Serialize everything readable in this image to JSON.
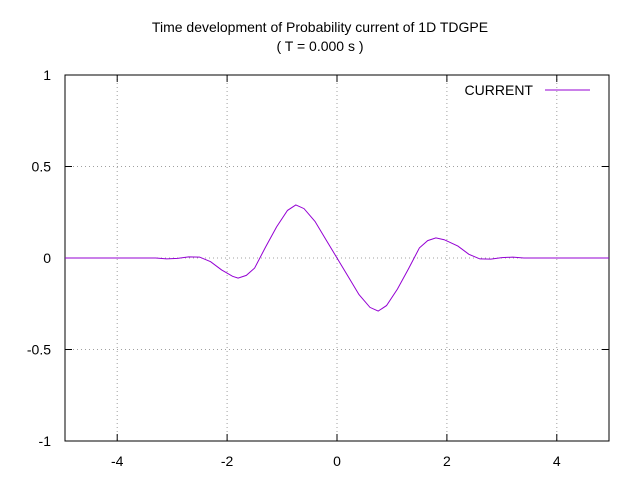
{
  "chart_data": {
    "type": "line",
    "title": "Time development of Probability current of 1D TDGPE",
    "subtitle": "( T = 0.000 s )",
    "xlabel": "",
    "ylabel": "",
    "xlim": [
      -4.95,
      4.95
    ],
    "ylim": [
      -1,
      1
    ],
    "xticks": [
      -4,
      -2,
      0,
      2,
      4
    ],
    "xtick_labels": [
      "-4",
      "-2",
      "0",
      "2",
      "4"
    ],
    "yticks": [
      1,
      0.5,
      0,
      -0.5,
      -1
    ],
    "ytick_labels": [
      "1",
      "0.5",
      "0",
      "-0.5",
      "-1"
    ],
    "grid": true,
    "legend": "top-right",
    "series": [
      {
        "name": "CURRENT",
        "color": "#9400d3",
        "x": [
          -4.95,
          -3.3,
          -3.1,
          -2.9,
          -2.7,
          -2.5,
          -2.3,
          -2.1,
          -1.9,
          -1.8,
          -1.65,
          -1.5,
          -1.3,
          -1.1,
          -0.9,
          -0.75,
          -0.6,
          -0.4,
          -0.2,
          0.0,
          0.2,
          0.4,
          0.6,
          0.75,
          0.9,
          1.1,
          1.3,
          1.5,
          1.65,
          1.8,
          1.95,
          2.2,
          2.4,
          2.6,
          2.8,
          3.0,
          3.2,
          3.4,
          3.6,
          4.95
        ],
        "y": [
          0.0,
          0.0,
          -0.005,
          -0.002,
          0.006,
          0.005,
          -0.02,
          -0.065,
          -0.1,
          -0.11,
          -0.095,
          -0.055,
          0.06,
          0.17,
          0.26,
          0.29,
          0.27,
          0.2,
          0.1,
          0.0,
          -0.1,
          -0.2,
          -0.27,
          -0.29,
          -0.26,
          -0.17,
          -0.06,
          0.055,
          0.095,
          0.11,
          0.1,
          0.065,
          0.02,
          -0.005,
          -0.006,
          0.002,
          0.005,
          0.0,
          0.0,
          0.0
        ]
      }
    ]
  }
}
